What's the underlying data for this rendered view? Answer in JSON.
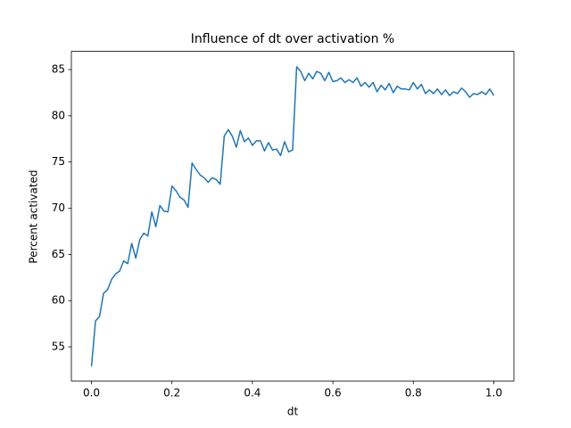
{
  "chart_data": {
    "type": "line",
    "title": "Influence of dt over activation %",
    "xlabel": "dt",
    "ylabel": "Percent activated",
    "color": "#1f77b4",
    "x": [
      0,
      0.01,
      0.02,
      0.03,
      0.04,
      0.05,
      0.06,
      0.07,
      0.08,
      0.09,
      0.1,
      0.11,
      0.12,
      0.13,
      0.14,
      0.15,
      0.16,
      0.17,
      0.18,
      0.19,
      0.2,
      0.21,
      0.22,
      0.23,
      0.24,
      0.25,
      0.26,
      0.27,
      0.28,
      0.29,
      0.3,
      0.31,
      0.32,
      0.33,
      0.34,
      0.35,
      0.36,
      0.37,
      0.38,
      0.39,
      0.4,
      0.41,
      0.42,
      0.43,
      0.44,
      0.45,
      0.46,
      0.47,
      0.48,
      0.49,
      0.5,
      0.51,
      0.52,
      0.53,
      0.54,
      0.55,
      0.56,
      0.57,
      0.58,
      0.59,
      0.6,
      0.61,
      0.62,
      0.63,
      0.64,
      0.65,
      0.66,
      0.67,
      0.68,
      0.69,
      0.7,
      0.71,
      0.72,
      0.73,
      0.74,
      0.75,
      0.76,
      0.77,
      0.78,
      0.79,
      0.8,
      0.81,
      0.82,
      0.83,
      0.84,
      0.85,
      0.86,
      0.87,
      0.88,
      0.89,
      0.9,
      0.91,
      0.92,
      0.93,
      0.94,
      0.95,
      0.96,
      0.97,
      0.98,
      0.99,
      1
    ],
    "values": [
      52.9,
      57.8,
      58.3,
      60.8,
      61.2,
      62.3,
      62.9,
      63.2,
      64.3,
      64.0,
      66.2,
      64.6,
      66.6,
      67.3,
      67.0,
      69.6,
      68.0,
      70.3,
      69.7,
      69.6,
      72.4,
      71.9,
      71.2,
      70.9,
      70.1,
      74.9,
      74.2,
      73.6,
      73.3,
      72.8,
      73.3,
      73.1,
      72.6,
      77.8,
      78.5,
      77.8,
      76.6,
      78.4,
      77.2,
      77.6,
      76.8,
      77.3,
      77.3,
      76.2,
      77.1,
      76.3,
      76.4,
      75.7,
      77.2,
      76.1,
      76.3,
      85.3,
      84.8,
      83.8,
      84.6,
      84.0,
      84.8,
      84.6,
      83.8,
      84.7,
      83.7,
      83.8,
      84.1,
      83.6,
      83.9,
      83.6,
      84.1,
      83.2,
      83.6,
      83.1,
      83.6,
      82.6,
      83.3,
      82.8,
      83.5,
      82.5,
      83.2,
      82.9,
      82.9,
      82.8,
      83.6,
      82.9,
      83.4,
      82.4,
      82.8,
      82.4,
      82.9,
      82.3,
      82.8,
      82.2,
      82.6,
      82.4,
      83.0,
      82.6,
      82.0,
      82.4,
      82.3,
      82.6,
      82.3,
      82.9,
      82.2
    ],
    "xlim": [
      -0.05,
      1.05
    ],
    "ylim": [
      51.32,
      86.97
    ],
    "xticks": [
      {
        "value": 0,
        "label": "0.0"
      },
      0.2,
      0.4,
      0.6,
      0.8,
      {
        "value": 1,
        "label": "1.0"
      }
    ],
    "yticks": [
      55,
      60,
      65,
      70,
      75,
      80,
      85
    ]
  }
}
